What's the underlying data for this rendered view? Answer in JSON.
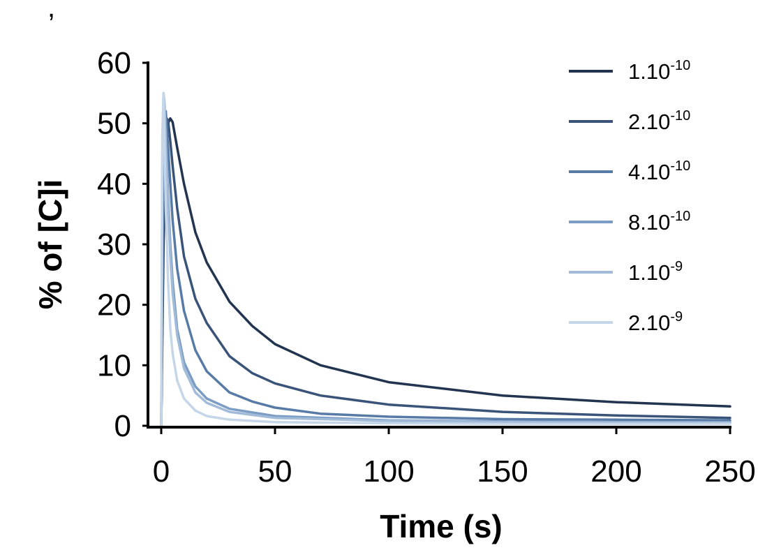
{
  "stray_mark": ",",
  "chart_data": {
    "type": "line",
    "title": "",
    "xlabel": "Time (s)",
    "ylabel": "% of [C]i",
    "xlim": [
      0,
      250
    ],
    "ylim": [
      0,
      60
    ],
    "x_ticks": [
      "0",
      "50",
      "100",
      "150",
      "200",
      "250"
    ],
    "y_ticks": [
      "0",
      "10",
      "20",
      "30",
      "40",
      "50",
      "60"
    ],
    "grid": false,
    "legend_position": "top-right",
    "series": [
      {
        "name": "1.10-10",
        "label_base": "1.10",
        "label_exp": "-10",
        "color": "#22344f",
        "x": [
          0,
          1,
          2,
          3,
          4,
          5,
          7,
          10,
          15,
          20,
          30,
          40,
          50,
          70,
          100,
          150,
          200,
          250
        ],
        "y": [
          0,
          30,
          46,
          50,
          50.8,
          50.2,
          46,
          40,
          32,
          27,
          20.5,
          16.5,
          13.5,
          10,
          7.2,
          5.0,
          3.9,
          3.2
        ]
      },
      {
        "name": "2.10-10",
        "label_base": "2.10",
        "label_exp": "-10",
        "color": "#3a5479",
        "x": [
          0,
          1,
          2,
          3,
          4,
          5,
          7,
          10,
          15,
          20,
          30,
          40,
          50,
          70,
          100,
          150,
          200,
          250
        ],
        "y": [
          0,
          38,
          51,
          50.5,
          47,
          43,
          36,
          28,
          21,
          17,
          11.5,
          8.7,
          7.0,
          5.0,
          3.5,
          2.3,
          1.7,
          1.3
        ]
      },
      {
        "name": "4.10-10",
        "label_base": "4.10",
        "label_exp": "-10",
        "color": "#577aa6",
        "x": [
          0,
          1,
          2,
          3,
          4,
          5,
          7,
          10,
          15,
          20,
          30,
          40,
          50,
          70,
          100,
          150,
          200,
          250
        ],
        "y": [
          0,
          48,
          52,
          46,
          40,
          34,
          26,
          19,
          12.5,
          9,
          5.5,
          4.0,
          3.0,
          2.0,
          1.5,
          1.1,
          1.0,
          0.9
        ]
      },
      {
        "name": "8.10-10",
        "label_base": "8.10",
        "label_exp": "-10",
        "color": "#7b9cc4",
        "x": [
          0,
          0.5,
          1,
          1.5,
          2,
          3,
          4,
          5,
          7,
          10,
          15,
          20,
          30,
          50,
          100,
          150,
          200,
          250
        ],
        "y": [
          0,
          38,
          53,
          52,
          48,
          38,
          30,
          24,
          16,
          10.5,
          6.5,
          4.5,
          2.8,
          1.6,
          0.9,
          0.7,
          0.6,
          0.6
        ]
      },
      {
        "name": "1.10-9",
        "label_base": "1.10",
        "label_exp": "-9",
        "color": "#a1bbd8",
        "x": [
          0,
          0.5,
          1,
          1.5,
          2,
          3,
          4,
          5,
          7,
          10,
          15,
          20,
          30,
          50,
          100,
          150,
          200,
          250
        ],
        "y": [
          0,
          45,
          55,
          53,
          46,
          36,
          28,
          22,
          15,
          9.5,
          5.5,
          3.8,
          2.3,
          1.3,
          0.8,
          0.6,
          0.55,
          0.5
        ]
      },
      {
        "name": "2.10-9",
        "label_base": "2.10",
        "label_exp": "-9",
        "color": "#c4d6e8",
        "x": [
          0,
          0.5,
          1,
          1.5,
          2,
          3,
          4,
          5,
          7,
          10,
          15,
          20,
          30,
          50,
          100,
          150,
          200,
          250
        ],
        "y": [
          0,
          48,
          55,
          46,
          36,
          24,
          16,
          12,
          7.5,
          4.5,
          2.5,
          1.6,
          1.0,
          0.6,
          0.4,
          0.3,
          0.3,
          0.3
        ]
      }
    ]
  }
}
